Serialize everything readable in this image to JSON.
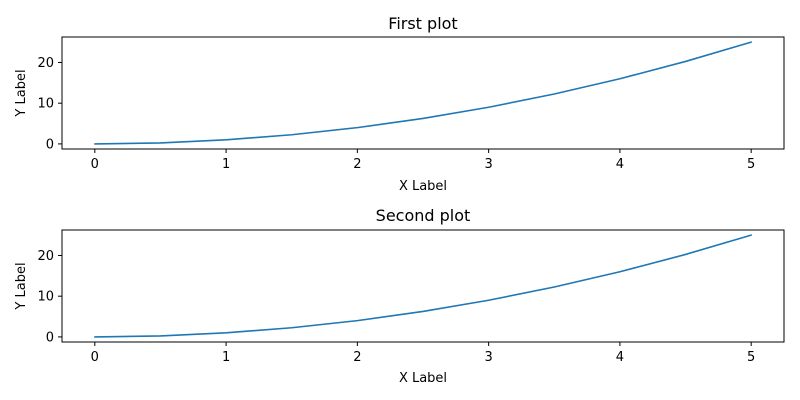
{
  "chart_data": [
    {
      "type": "line",
      "title": "First plot",
      "xlabel": "X Label",
      "ylabel": "Y Label",
      "xlim": [
        -0.25,
        5.25
      ],
      "ylim": [
        -1.25,
        26.25
      ],
      "xticks": [
        0,
        1,
        2,
        3,
        4,
        5
      ],
      "yticks": [
        0,
        10,
        20
      ],
      "grid": false,
      "color": "#1f77b4",
      "x": [
        0,
        0.5,
        1,
        1.5,
        2,
        2.5,
        3,
        3.5,
        4,
        4.5,
        5
      ],
      "y": [
        0,
        0.25,
        1,
        2.25,
        4,
        6.25,
        9,
        12.25,
        16,
        20.25,
        25
      ]
    },
    {
      "type": "line",
      "title": "Second plot",
      "xlabel": "X Label",
      "ylabel": "Y Label",
      "xlim": [
        -0.25,
        5.25
      ],
      "ylim": [
        -1.25,
        26.25
      ],
      "xticks": [
        0,
        1,
        2,
        3,
        4,
        5
      ],
      "yticks": [
        0,
        10,
        20
      ],
      "grid": false,
      "color": "#1f77b4",
      "x": [
        0,
        0.5,
        1,
        1.5,
        2,
        2.5,
        3,
        3.5,
        4,
        4.5,
        5
      ],
      "y": [
        0,
        0.25,
        1,
        2.25,
        4,
        6.25,
        9,
        12.25,
        16,
        20.25,
        25
      ]
    }
  ]
}
